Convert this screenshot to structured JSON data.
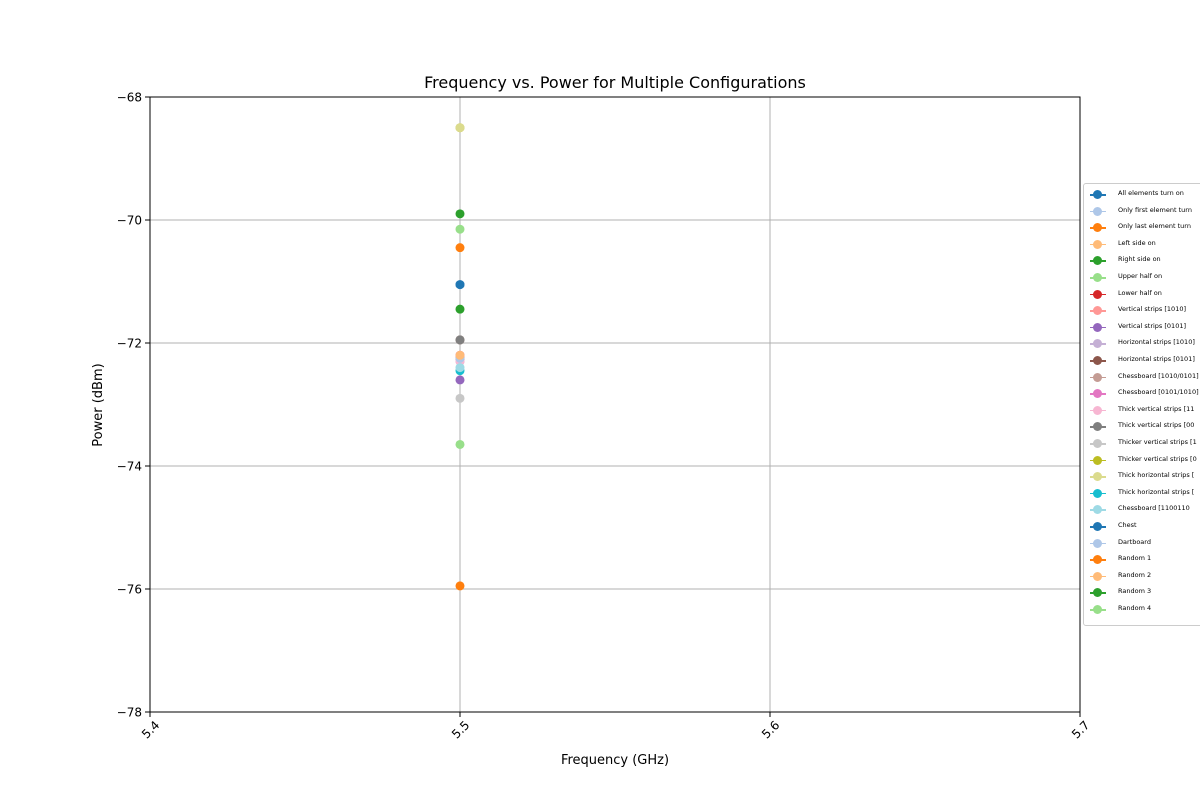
{
  "chart_data": {
    "type": "scatter",
    "title": "Frequency vs. Power for Multiple Configurations",
    "xlabel": "Frequency (GHz)",
    "ylabel": "Power (dBm)",
    "xlim": [
      5.4,
      5.7
    ],
    "ylim": [
      -78,
      -68
    ],
    "xticks": [
      "5.4",
      "5.5",
      "5.6",
      "5.7"
    ],
    "yticks": [
      "−68",
      "−70",
      "−72",
      "−74",
      "−76",
      "−78"
    ],
    "grid": true,
    "legend_position": "right",
    "series": [
      {
        "name": "All elements turn on",
        "color": "#1f77b4",
        "x": [
          5.5
        ],
        "y": [
          -71.05
        ]
      },
      {
        "name": "Only first element turn",
        "color": "#aec7e8",
        "x": [
          5.5
        ],
        "y": [
          -71.05
        ]
      },
      {
        "name": "Only last element turn",
        "color": "#ff7f0e",
        "x": [
          5.5
        ],
        "y": [
          -70.45
        ]
      },
      {
        "name": "Left side on",
        "color": "#ffbb78",
        "x": [
          5.5
        ],
        "y": [
          -72.2
        ]
      },
      {
        "name": "Right side on",
        "color": "#2ca02c",
        "x": [
          5.5
        ],
        "y": [
          -71.45
        ]
      },
      {
        "name": "Upper half on",
        "color": "#98df8a",
        "x": [
          5.5
        ],
        "y": [
          -70.15
        ]
      },
      {
        "name": "Lower half on",
        "color": "#d62728",
        "x": [
          5.5
        ],
        "y": [
          -72.25
        ]
      },
      {
        "name": "Vertical strips [1010]",
        "color": "#ff9896",
        "x": [
          5.5
        ],
        "y": [
          -72.2
        ]
      },
      {
        "name": "Vertical strips [0101]",
        "color": "#9467bd",
        "x": [
          5.5
        ],
        "y": [
          -72.6
        ]
      },
      {
        "name": "Horizontal strips [1010]",
        "color": "#c5b0d5",
        "x": [
          5.5
        ],
        "y": [
          -72.3
        ]
      },
      {
        "name": "Horizontal strips [0101]",
        "color": "#8c564b",
        "x": [
          5.5
        ],
        "y": [
          -71.95
        ]
      },
      {
        "name": "Chessboard [1010/0101]",
        "color": "#c49c94",
        "x": [
          5.5
        ],
        "y": [
          -72.25
        ]
      },
      {
        "name": "Chessboard [0101/1010]",
        "color": "#e377c2",
        "x": [
          5.5
        ],
        "y": [
          -72.2
        ]
      },
      {
        "name": "Thick vertical strips [11",
        "color": "#f7b6d2",
        "x": [
          5.5
        ],
        "y": [
          -72.3
        ]
      },
      {
        "name": "Thick vertical strips [00",
        "color": "#7f7f7f",
        "x": [
          5.5
        ],
        "y": [
          -71.95
        ]
      },
      {
        "name": "Thicker vertical strips [1",
        "color": "#c7c7c7",
        "x": [
          5.5
        ],
        "y": [
          -72.9
        ]
      },
      {
        "name": "Thicker vertical strips [0",
        "color": "#bcbd22",
        "x": [
          5.5
        ],
        "y": [
          -68.5
        ]
      },
      {
        "name": "Thick horizontal strips [",
        "color": "#dbdb8d",
        "x": [
          5.5
        ],
        "y": [
          -68.5
        ]
      },
      {
        "name": "Thick horizontal strips [",
        "color": "#17becf",
        "x": [
          5.5
        ],
        "y": [
          -72.45
        ]
      },
      {
        "name": "Chessboard [1100110",
        "color": "#9edae5",
        "x": [
          5.5
        ],
        "y": [
          -72.4
        ]
      },
      {
        "name": "Chest",
        "color": "#1f77b4",
        "x": [
          5.5
        ],
        "y": [
          -71.05
        ]
      },
      {
        "name": "Dartboard",
        "color": "#aec7e8",
        "x": [
          5.5
        ],
        "y": [
          -72.25
        ]
      },
      {
        "name": "Random 1",
        "color": "#ff7f0e",
        "x": [
          5.5
        ],
        "y": [
          -75.95
        ]
      },
      {
        "name": "Random 2",
        "color": "#ffbb78",
        "x": [
          5.5
        ],
        "y": [
          -72.2
        ]
      },
      {
        "name": "Random 3",
        "color": "#2ca02c",
        "x": [
          5.5
        ],
        "y": [
          -69.9
        ]
      },
      {
        "name": "Random 4",
        "color": "#98df8a",
        "x": [
          5.5
        ],
        "y": [
          -73.65
        ]
      }
    ]
  }
}
